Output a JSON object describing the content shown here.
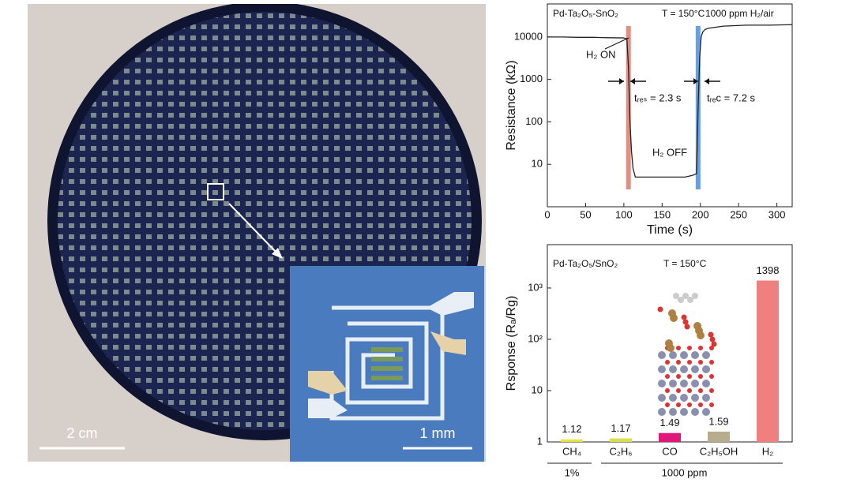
{
  "photo": {
    "scale_bar": "2 cm",
    "inset_scale_bar": "1 mm"
  },
  "chart_data": [
    {
      "type": "line",
      "labels": [
        "Pd-Ta₂O₅-SnO₂",
        "T = 150°C",
        "1000 ppm H₂/air"
      ],
      "annotations": [
        "H₂ ON",
        "H₂ OFF",
        "tᵣₑₛ = 2.3 s",
        "tᵣₑc = 7.2 s"
      ],
      "x_label": "Time (s)",
      "y_label": "Resistance (kΩ)",
      "log_y": true,
      "xlim": [
        0,
        320
      ],
      "xticks": [
        0,
        50,
        100,
        150,
        200,
        250,
        300
      ],
      "ylim": [
        1,
        60000
      ],
      "yticks": [
        10,
        100,
        1000,
        10000
      ],
      "markers": [
        {
          "x": 106,
          "color": "#e0796b"
        },
        {
          "x": 197,
          "color": "#4a90e2"
        }
      ],
      "series": [
        {
          "color": "#222222",
          "x": [
            0,
            20,
            40,
            60,
            80,
            100,
            104,
            106,
            108,
            110,
            112,
            115,
            120,
            140,
            160,
            180,
            190,
            195,
            197,
            199,
            201,
            203,
            206,
            210,
            230,
            260,
            290,
            320
          ],
          "values": [
            10000,
            10000,
            9800,
            9800,
            9600,
            9500,
            9000,
            2000,
            100,
            20,
            8,
            5,
            5,
            5,
            5,
            5,
            5.5,
            6,
            200,
            3000,
            10000,
            13000,
            15000,
            16000,
            18000,
            19000,
            19000,
            19500
          ]
        }
      ]
    },
    {
      "type": "bar",
      "labels": [
        "Pd-Ta₂O₅/SnO₂",
        "T = 150°C"
      ],
      "y_label": "Rsponse (Rₐ/Rg)",
      "log_y": true,
      "categories": [
        "CH₄",
        "C₂H₆",
        "CO",
        "C₂H₅OH",
        "H₂"
      ],
      "values": [
        1.12,
        1.17,
        1.49,
        1.59,
        1398
      ],
      "value_labels": [
        "1.12",
        "1.17",
        "1.49",
        "1.59",
        "1398"
      ],
      "colors": [
        "#e8e23a",
        "#d9e04a",
        "#e0187a",
        "#b8ad8a",
        "#f08080"
      ],
      "groups": [
        "1%",
        "1000 ppm"
      ],
      "ylim": [
        1,
        7000
      ],
      "yticks": [
        1,
        10,
        {
          "value": 100,
          "label": "10²"
        },
        {
          "value": 1000,
          "label": "10³"
        }
      ]
    }
  ]
}
